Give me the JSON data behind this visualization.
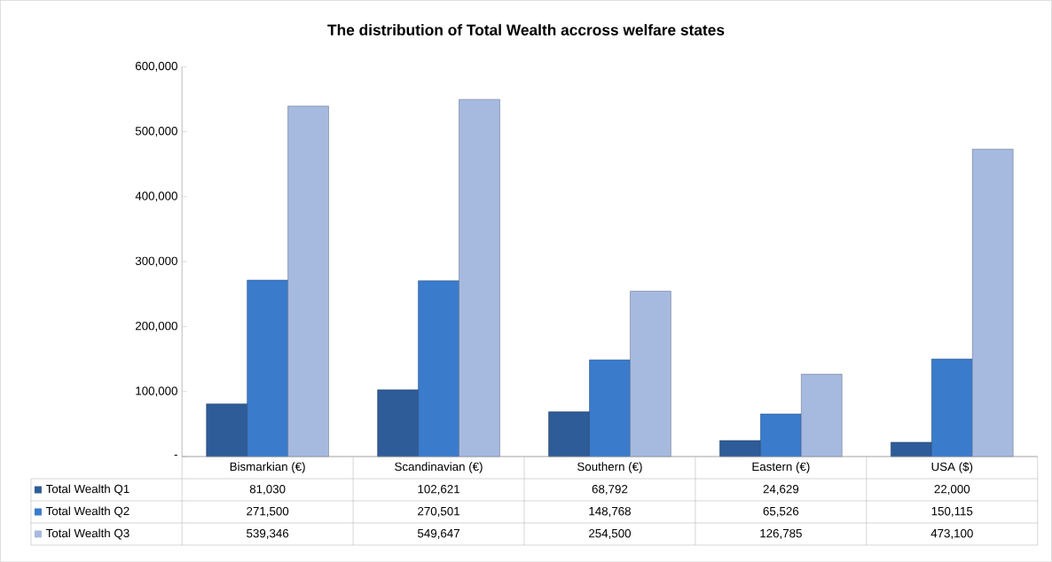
{
  "chart_data": {
    "type": "bar",
    "title": "The distribution of Total Wealth accross welfare states",
    "categories": [
      "Bismarkian (€)",
      "Scandinavian (€)",
      "Southern (€)",
      "Eastern (€)",
      "USA ($)"
    ],
    "series": [
      {
        "name": "Total Wealth Q1",
        "color": "#2e5c98",
        "values": [
          81030,
          102621,
          68792,
          24629,
          22000
        ],
        "value_labels": [
          "81,030",
          "102,621",
          "68,792",
          "24,629",
          "22,000"
        ]
      },
      {
        "name": "Total Wealth Q2",
        "color": "#3a7bcc",
        "values": [
          271500,
          270501,
          148768,
          65526,
          150115
        ],
        "value_labels": [
          "271,500",
          "270,501",
          "148,768",
          "65,526",
          "150,115"
        ]
      },
      {
        "name": "Total Wealth Q3",
        "color": "#a6b9df",
        "values": [
          539346,
          549647,
          254500,
          126785,
          473100
        ],
        "value_labels": [
          "539,346",
          "549,647",
          "254,500",
          "126,785",
          "473,100"
        ]
      }
    ],
    "ylim": [
      0,
      600000
    ],
    "legend": "bottom left",
    "yticks": [
      {
        "value": 0,
        "label": "-"
      },
      {
        "value": 100000,
        "label": "100,000"
      },
      {
        "value": 200000,
        "label": "200,000"
      },
      {
        "value": 300000,
        "label": "300,000"
      },
      {
        "value": 400000,
        "label": "400,000"
      },
      {
        "value": 500000,
        "label": "500,000"
      },
      {
        "value": 600000,
        "label": "600,000"
      }
    ]
  }
}
